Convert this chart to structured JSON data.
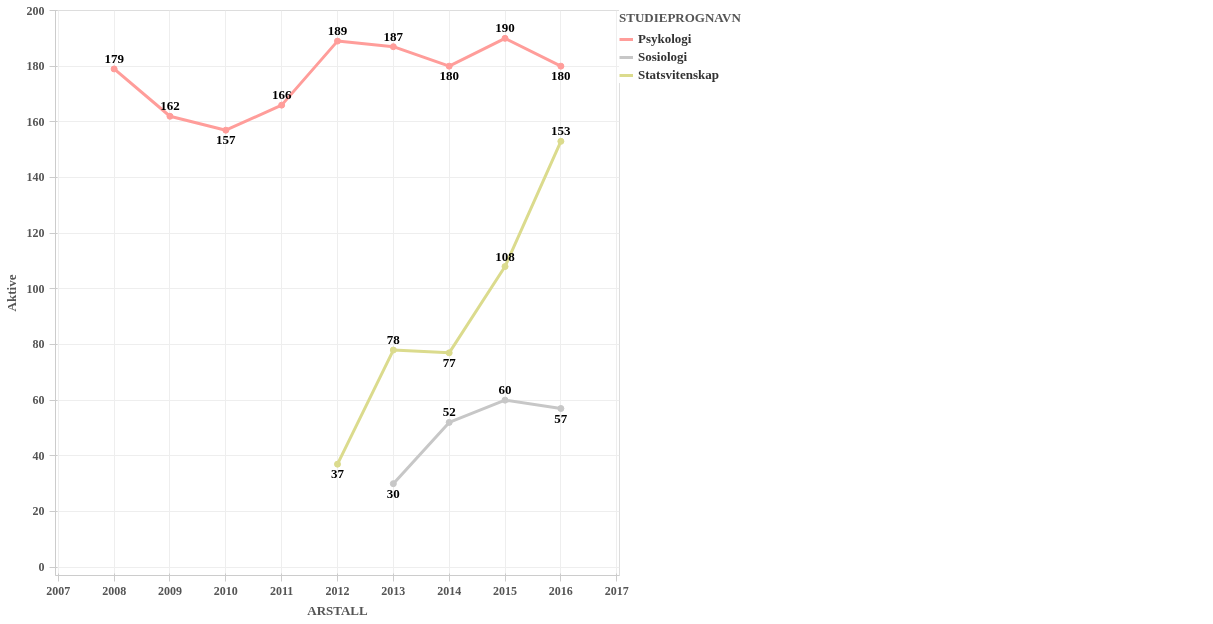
{
  "chart_data": {
    "type": "line",
    "xlabel": "ARSTALL",
    "ylabel": "Aktive",
    "legend_title": "STUDIEPROGNAVN",
    "x": [
      2008,
      2009,
      2010,
      2011,
      2012,
      2013,
      2014,
      2015,
      2016
    ],
    "series": [
      {
        "name": "Psykologi",
        "color": "#ff9d9a",
        "values": [
          179,
          162,
          157,
          166,
          189,
          187,
          180,
          190,
          180
        ]
      },
      {
        "name": "Sosiologi",
        "color": "#c7c7c7",
        "values": [
          null,
          null,
          null,
          null,
          null,
          30,
          52,
          60,
          57
        ]
      },
      {
        "name": "Statsvitenskap",
        "color": "#dbdb8d",
        "values": [
          null,
          null,
          null,
          null,
          37,
          78,
          77,
          108,
          153
        ]
      }
    ],
    "xlim": [
      2006.95,
      2017.05
    ],
    "ylim": [
      -3,
      200
    ],
    "xticks": [
      2007,
      2008,
      2009,
      2010,
      2011,
      2012,
      2013,
      2014,
      2015,
      2016,
      2017
    ],
    "yticks": [
      0,
      20,
      40,
      60,
      80,
      100,
      120,
      140,
      160,
      180,
      200
    ],
    "grid": true,
    "legend": "top right",
    "marker": "circle",
    "line_style": "solid",
    "data_labels": true
  }
}
